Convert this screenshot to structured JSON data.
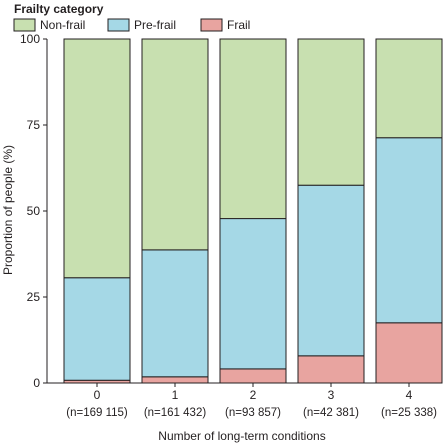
{
  "chart_data": {
    "type": "bar",
    "stacked": true,
    "legend_title": "Frailty category",
    "legend_position": "top-left",
    "categories": [
      "0",
      "1",
      "2",
      "3",
      "4"
    ],
    "category_counts": [
      "(n=169 115)",
      "(n=161 432)",
      "(n=93 857)",
      "(n=42 381)",
      "(n=25 338)"
    ],
    "series": [
      {
        "name": "Frail",
        "color": "#e8a4a0",
        "values": [
          0.8,
          1.8,
          4.1,
          7.9,
          17.5
        ]
      },
      {
        "name": "Pre-frail",
        "color": "#a5d8e6",
        "values": [
          29.8,
          36.9,
          43.7,
          49.6,
          53.8
        ]
      },
      {
        "name": "Non-frail",
        "color": "#c8e0b0",
        "values": [
          69.4,
          61.3,
          52.2,
          42.5,
          28.7
        ]
      }
    ],
    "legend_order": [
      "Non-frail",
      "Pre-frail",
      "Frail"
    ],
    "xlabel": "Number of long-term conditions",
    "ylabel": "Proportion of people (%)",
    "ylim": [
      0,
      100
    ],
    "yticks": [
      "0",
      "25",
      "50",
      "75",
      "100"
    ],
    "grid": false
  }
}
